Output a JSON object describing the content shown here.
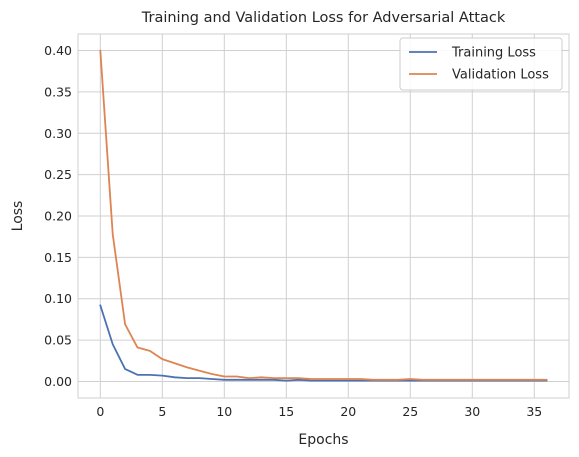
{
  "chart_data": {
    "type": "line",
    "title": "Training and Validation Loss for Adversarial Attack",
    "xlabel": "Epochs",
    "ylabel": "Loss",
    "xlim": [
      -1.8,
      37.8
    ],
    "ylim": [
      -0.02,
      0.42
    ],
    "xticks": [
      0,
      5,
      10,
      15,
      20,
      25,
      30,
      35
    ],
    "yticks": [
      0.0,
      0.05,
      0.1,
      0.15,
      0.2,
      0.25,
      0.3,
      0.35,
      0.4
    ],
    "grid": true,
    "legend_position": "top-right",
    "x": [
      0,
      1,
      2,
      3,
      4,
      5,
      6,
      7,
      8,
      9,
      10,
      11,
      12,
      13,
      14,
      15,
      16,
      17,
      18,
      19,
      20,
      21,
      22,
      23,
      24,
      25,
      26,
      27,
      28,
      29,
      30,
      31,
      32,
      33,
      34,
      35,
      36
    ],
    "series": [
      {
        "name": "Training Loss",
        "color": "#4c72b0",
        "values": [
          0.092,
          0.045,
          0.015,
          0.008,
          0.008,
          0.007,
          0.005,
          0.004,
          0.004,
          0.003,
          0.002,
          0.002,
          0.002,
          0.002,
          0.002,
          0.001,
          0.002,
          0.001,
          0.001,
          0.001,
          0.001,
          0.001,
          0.001,
          0.001,
          0.001,
          0.001,
          0.001,
          0.001,
          0.001,
          0.001,
          0.001,
          0.001,
          0.001,
          0.001,
          0.001,
          0.001,
          0.001
        ]
      },
      {
        "name": "Validation Loss",
        "color": "#dd8452",
        "values": [
          0.4,
          0.178,
          0.069,
          0.041,
          0.037,
          0.027,
          0.022,
          0.017,
          0.013,
          0.009,
          0.006,
          0.006,
          0.004,
          0.005,
          0.004,
          0.004,
          0.004,
          0.003,
          0.003,
          0.003,
          0.003,
          0.003,
          0.002,
          0.002,
          0.002,
          0.003,
          0.002,
          0.002,
          0.002,
          0.002,
          0.002,
          0.002,
          0.002,
          0.002,
          0.002,
          0.002,
          0.002
        ]
      }
    ]
  }
}
